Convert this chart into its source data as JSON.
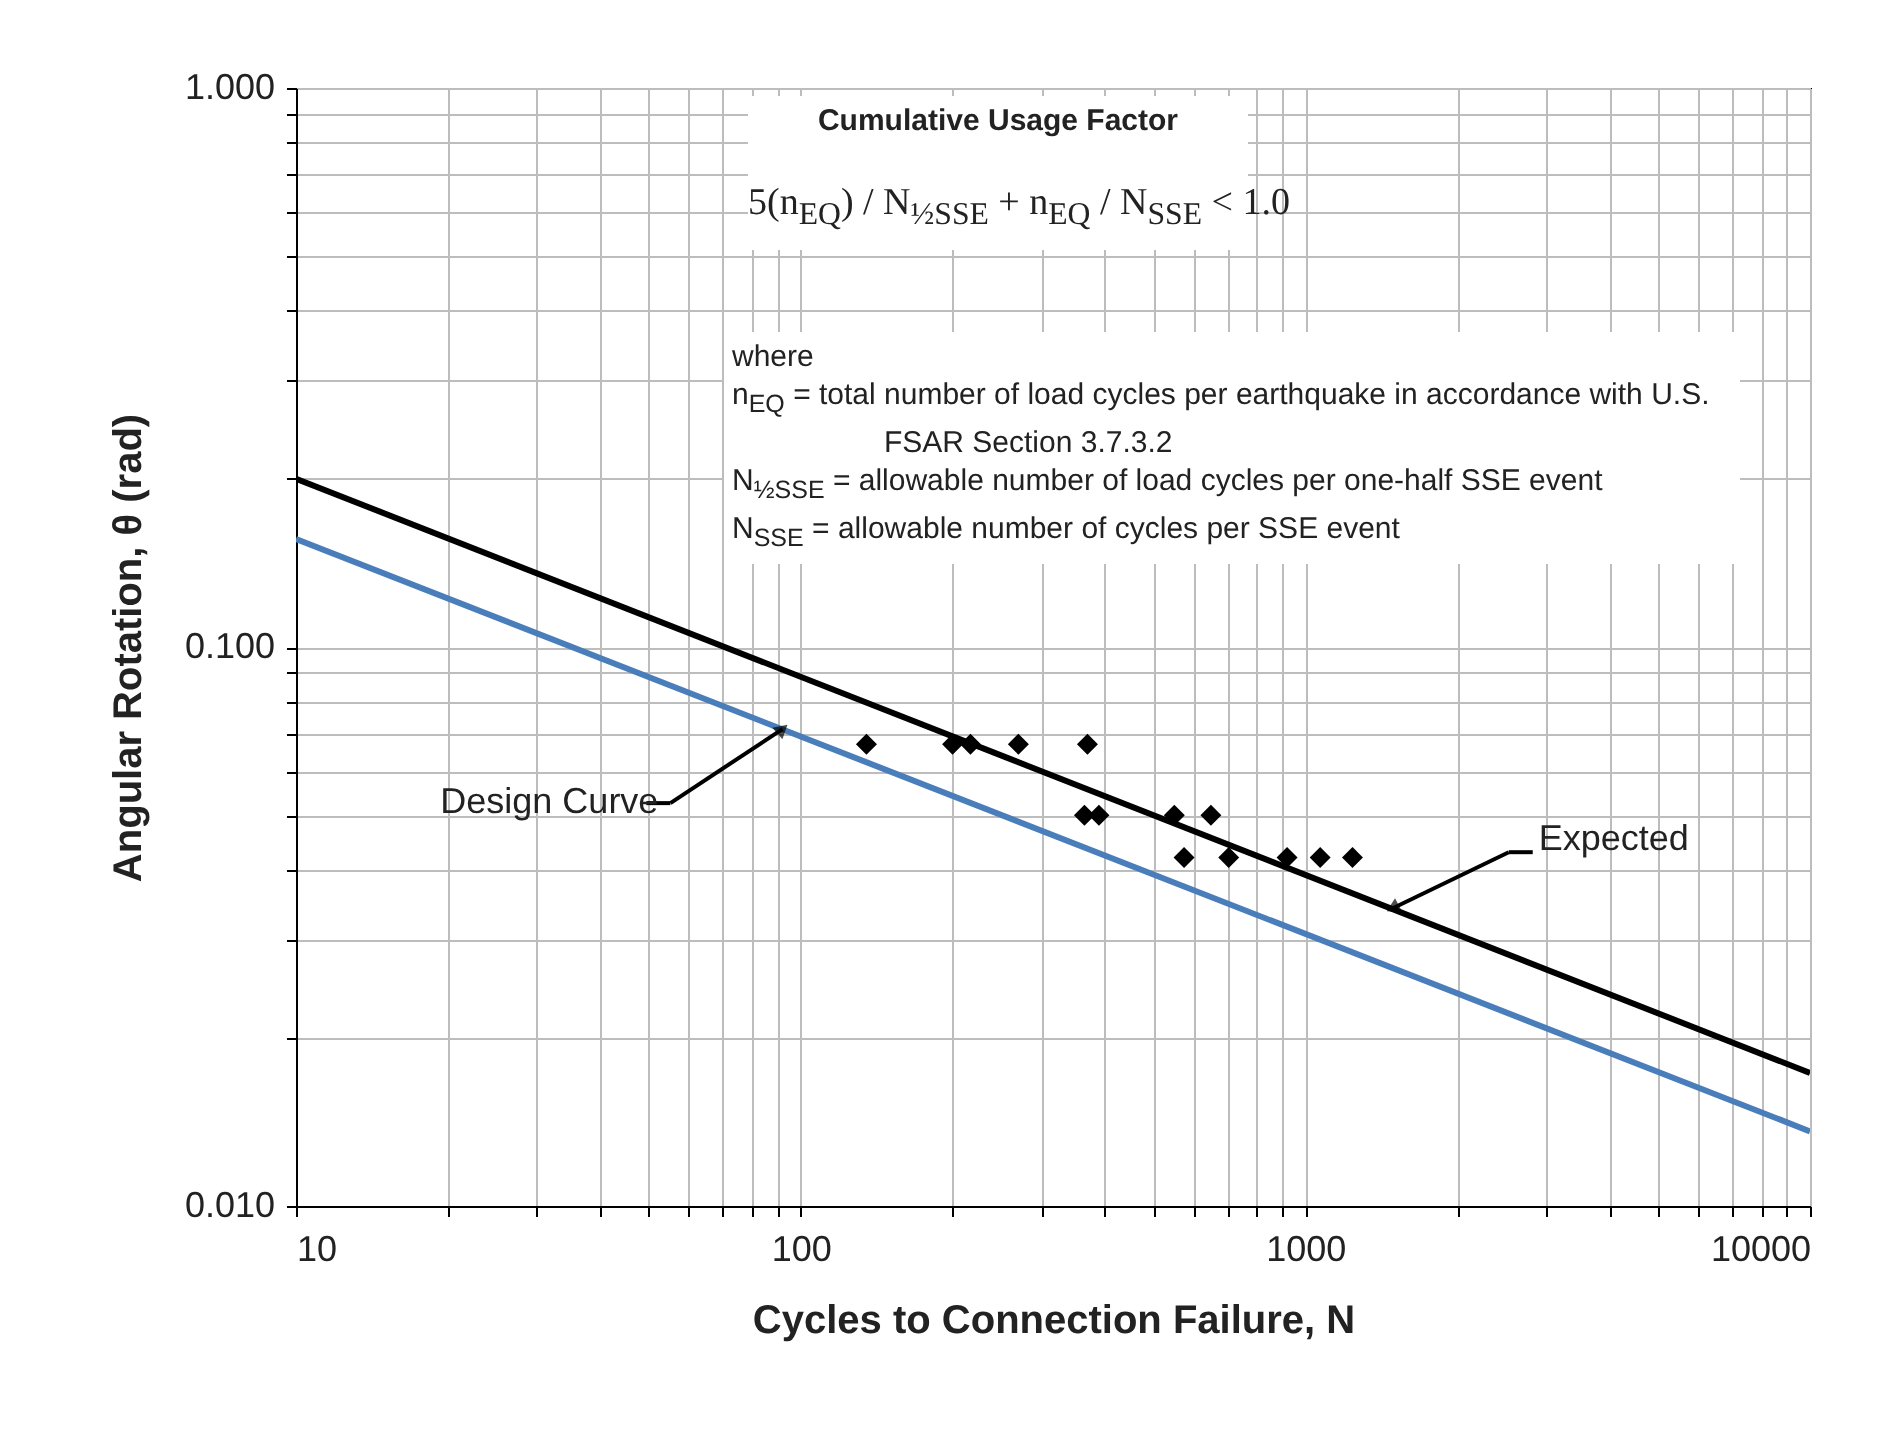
{
  "chart_data": {
    "type": "line",
    "xlabel": "Cycles to Connection Failure, N",
    "ylabel": "Angular Rotation, θ (rad)",
    "log": "xy",
    "grid": true,
    "xlim": [
      10,
      10000
    ],
    "ylim": [
      0.01,
      1
    ],
    "xticks": [
      10,
      {
        "value": 20,
        "label": null
      },
      {
        "value": 30,
        "label": null
      },
      {
        "value": 40,
        "label": null
      },
      {
        "value": 50,
        "label": null
      },
      {
        "value": 60,
        "label": null
      },
      {
        "value": 70,
        "label": null
      },
      {
        "value": 80,
        "label": null
      },
      {
        "value": 90,
        "label": null
      },
      100,
      {
        "value": 200,
        "label": null
      },
      {
        "value": 300,
        "label": null
      },
      {
        "value": 400,
        "label": null
      },
      {
        "value": 500,
        "label": null
      },
      {
        "value": 600,
        "label": null
      },
      {
        "value": 700,
        "label": null
      },
      {
        "value": 800,
        "label": null
      },
      {
        "value": 900,
        "label": null
      },
      1000,
      {
        "value": 2000,
        "label": null
      },
      {
        "value": 3000,
        "label": null
      },
      {
        "value": 4000,
        "label": null
      },
      {
        "value": 5000,
        "label": null
      },
      {
        "value": 6000,
        "label": null
      },
      {
        "value": 7000,
        "label": null
      },
      {
        "value": 8000,
        "label": null
      },
      {
        "value": 9000,
        "label": null
      },
      10000
    ],
    "yticks": [
      {
        "value": 0.01,
        "label": "0.010"
      },
      {
        "value": 0.02,
        "label": null
      },
      {
        "value": 0.03,
        "label": null
      },
      {
        "value": 0.04,
        "label": null
      },
      {
        "value": 0.05,
        "label": null
      },
      {
        "value": 0.06,
        "label": null
      },
      {
        "value": 0.07,
        "label": null
      },
      {
        "value": 0.08,
        "label": null
      },
      {
        "value": 0.09,
        "label": null
      },
      {
        "value": 0.1,
        "label": "0.100"
      },
      {
        "value": 0.2,
        "label": null
      },
      {
        "value": 0.3,
        "label": null
      },
      {
        "value": 0.4,
        "label": null
      },
      {
        "value": 0.5,
        "label": null
      },
      {
        "value": 0.6,
        "label": null
      },
      {
        "value": 0.7,
        "label": null
      },
      {
        "value": 0.8,
        "label": null
      },
      {
        "value": 0.9,
        "label": null
      },
      {
        "value": 1,
        "label": "1.000"
      }
    ],
    "series": [
      {
        "color": "#000000",
        "marker": "none",
        "x": [
          10,
          10000
        ],
        "values": [
          0.2,
          0.0173
        ]
      },
      {
        "color": "#4a7ebb",
        "marker": "none",
        "x": [
          10,
          10000
        ],
        "values": [
          0.156,
          0.0136
        ]
      },
      {
        "type": "scatter",
        "color": "#000000",
        "marker": "diamond",
        "x": [
          135,
          200,
          217,
          270,
          370,
          365,
          390,
          550,
          650,
          575,
          705,
          920,
          1070,
          1240
        ],
        "values": [
          0.067,
          0.067,
          0.067,
          0.067,
          0.067,
          0.05,
          0.05,
          0.05,
          0.05,
          0.042,
          0.042,
          0.042,
          0.042,
          0.042
        ]
      }
    ],
    "annotations": [
      "Cumulative Usage Factor",
      "5(n$_{EQ}$) / N$_{½SSE}$ + n$_{EQ}$ / N$_{SSE}$ < 1.0",
      "where",
      "n$_{EQ}$ = total number of load cycles per earthquake in accordance with U.S. FSAR Section 3.7.3.2",
      "N$_{½SSE}$ = allowable number of load cycles per one-half SSE event",
      "N$_{SSE}$ = allowable number of cycles per SSE event",
      {
        "text": "Design Curve",
        "x": 92,
        "y": 0.0713
      },
      {
        "text": "Expected",
        "x": 1490,
        "y": 0.0341
      }
    ]
  }
}
